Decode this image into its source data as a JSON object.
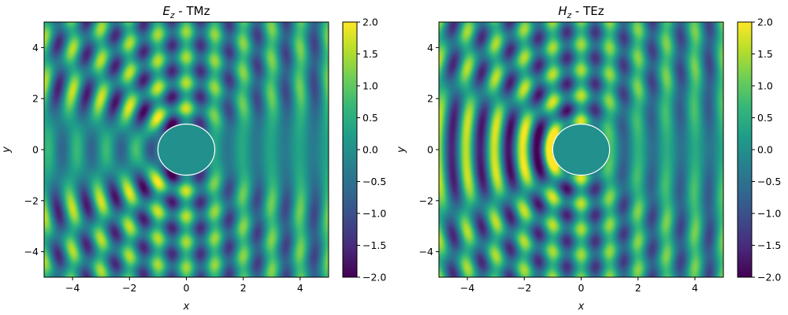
{
  "chart_data": [
    {
      "type": "heatmap",
      "title": {
        "symbol": "E",
        "sub": "z",
        "rest": " - TMz"
      },
      "xlabel": "x",
      "ylabel": "y",
      "xlim": [
        -5,
        5
      ],
      "ylim": [
        -5,
        5
      ],
      "xticks": [
        -4,
        -2,
        0,
        2,
        4
      ],
      "yticks": [
        -4,
        -2,
        0,
        2,
        4
      ],
      "colormap": "viridis",
      "clim": [
        -2.0,
        2.0
      ],
      "colorbar_ticks": [
        "2.0",
        "1.5",
        "1.0",
        "0.5",
        "0.0",
        "−0.5",
        "−1.0",
        "−1.5",
        "−2.0"
      ],
      "colorbar_tick_values": [
        2.0,
        1.5,
        1.0,
        0.5,
        0.0,
        -0.5,
        -1.0,
        -1.5,
        -2.0
      ],
      "tick_labels_x": [
        "−4",
        "−2",
        "0",
        "2",
        "4"
      ],
      "tick_labels_y": [
        "4",
        "2",
        "0",
        "−2",
        "−4"
      ],
      "cylinder": {
        "center": [
          0,
          0
        ],
        "radius": 1,
        "outline_color": "#ffffff"
      },
      "polarization": "TM",
      "incident_wavelength": 1.0
    },
    {
      "type": "heatmap",
      "title": {
        "symbol": "H",
        "sub": "z",
        "rest": " - TEz"
      },
      "xlabel": "x",
      "ylabel": "y",
      "xlim": [
        -5,
        5
      ],
      "ylim": [
        -5,
        5
      ],
      "xticks": [
        -4,
        -2,
        0,
        2,
        4
      ],
      "yticks": [
        -4,
        -2,
        0,
        2,
        4
      ],
      "colormap": "viridis",
      "clim": [
        -2.0,
        2.0
      ],
      "colorbar_ticks": [
        "2.0",
        "1.5",
        "1.0",
        "0.5",
        "0.0",
        "−0.5",
        "−1.0",
        "−1.5",
        "−2.0"
      ],
      "colorbar_tick_values": [
        2.0,
        1.5,
        1.0,
        0.5,
        0.0,
        -0.5,
        -1.0,
        -1.5,
        -2.0
      ],
      "tick_labels_x": [
        "−4",
        "−2",
        "0",
        "2",
        "4"
      ],
      "tick_labels_y": [
        "4",
        "2",
        "0",
        "−2",
        "−4"
      ],
      "cylinder": {
        "center": [
          0,
          0
        ],
        "radius": 1,
        "outline_color": "#ffffff"
      },
      "polarization": "TE",
      "incident_wavelength": 1.0
    }
  ]
}
